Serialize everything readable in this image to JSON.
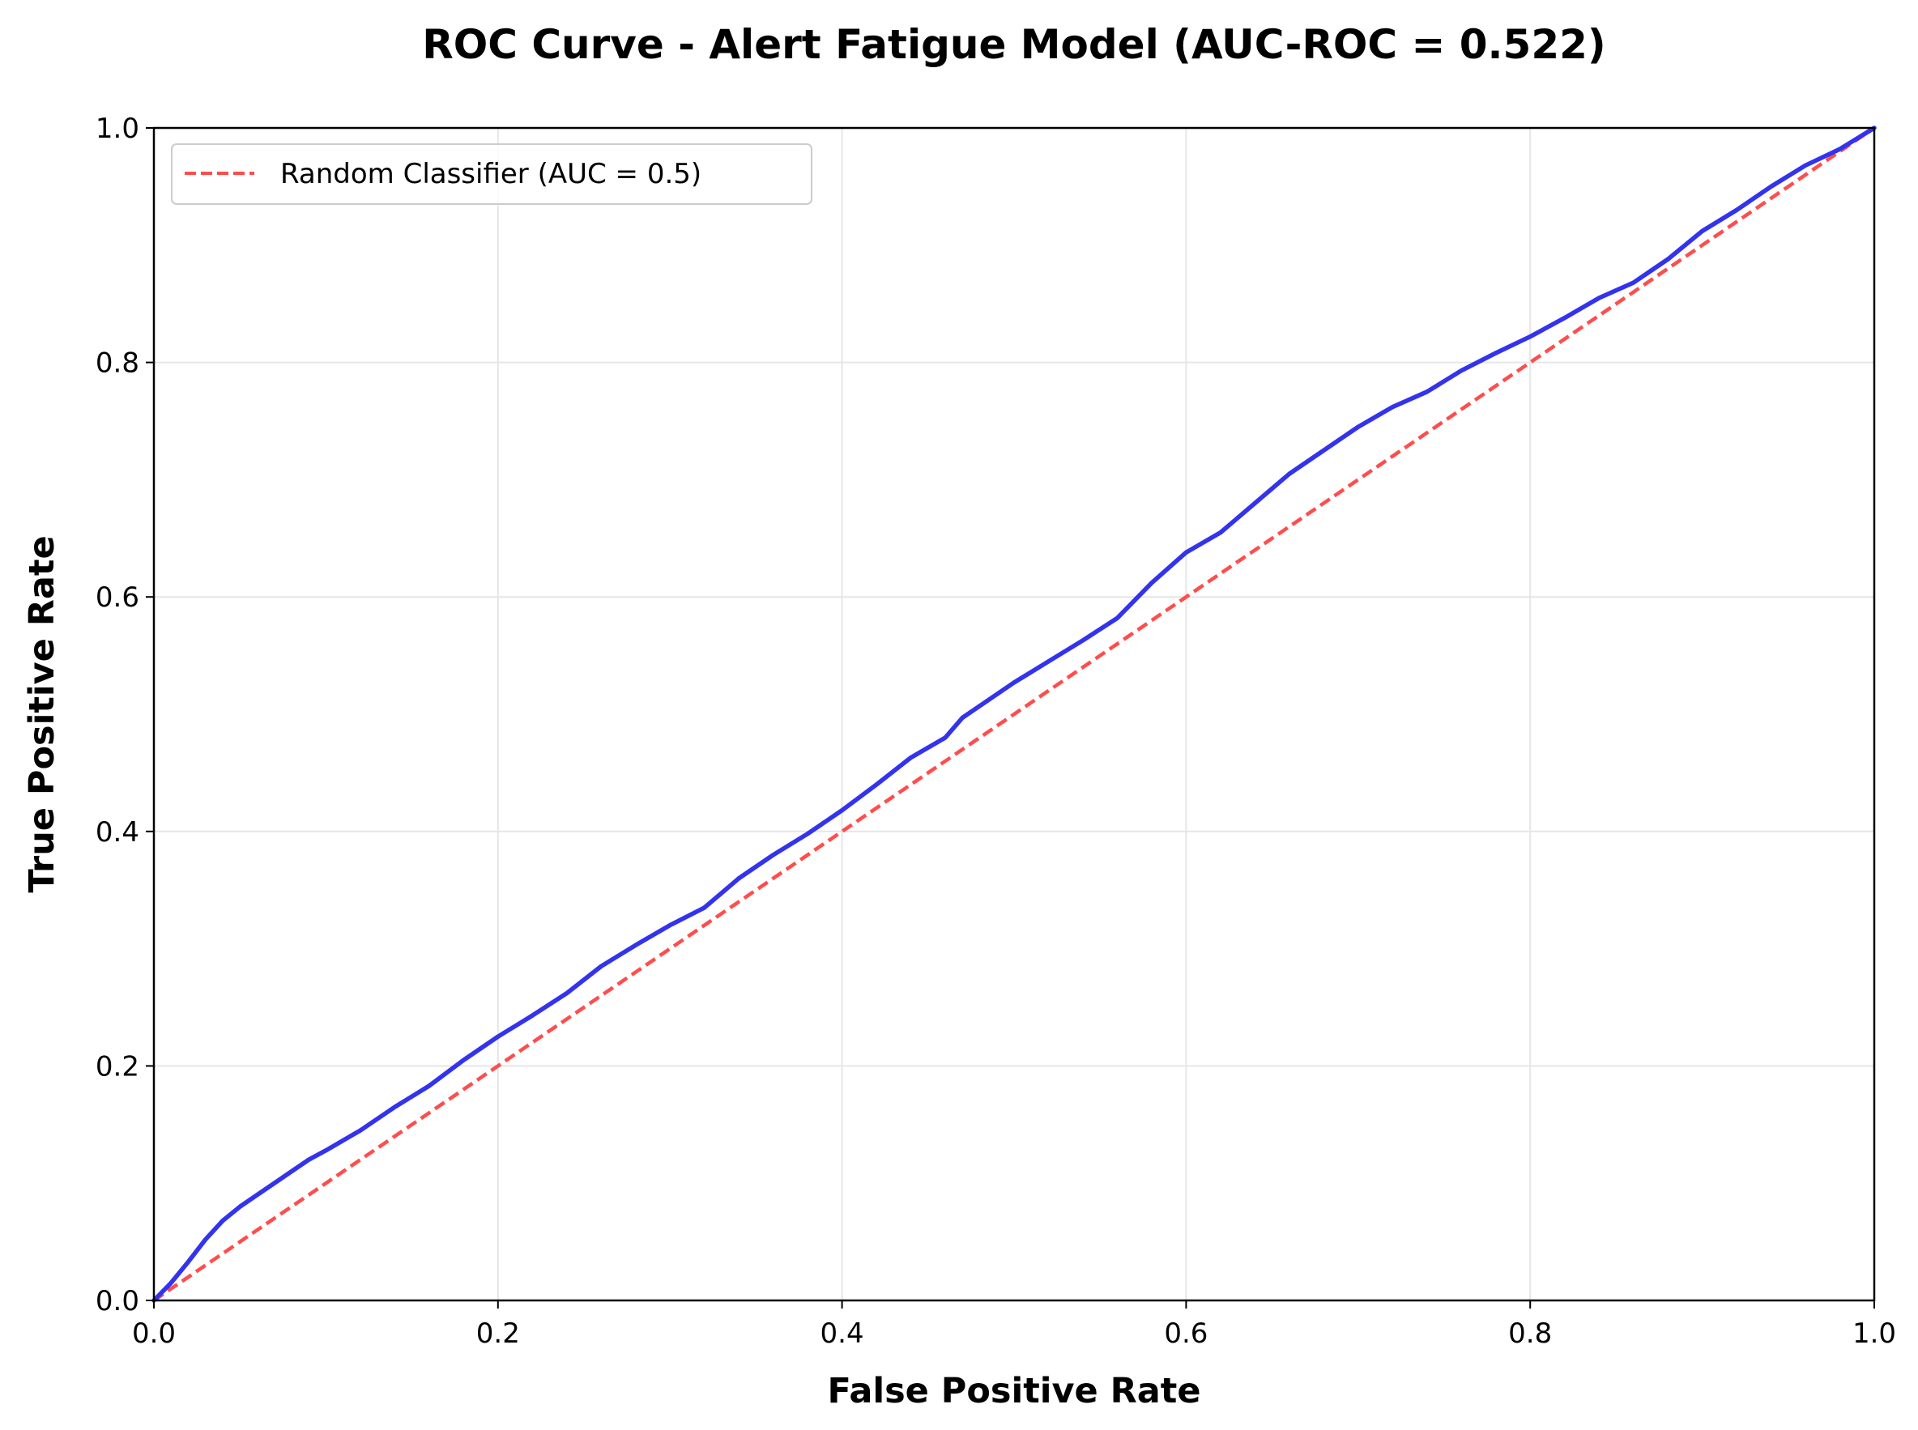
{
  "chart_data": {
    "type": "line",
    "title": "ROC Curve - Alert Fatigue Model (AUC-ROC = 0.522)",
    "xlabel": "False Positive Rate",
    "ylabel": "True Positive Rate",
    "xlim": [
      0.0,
      1.0
    ],
    "ylim": [
      0.0,
      1.0
    ],
    "xticks": [
      "0.0",
      "0.2",
      "0.4",
      "0.6",
      "0.8",
      "1.0"
    ],
    "yticks": [
      "0.0",
      "0.2",
      "0.4",
      "0.6",
      "0.8",
      "1.0"
    ],
    "grid": true,
    "legend_position": "top-left",
    "series": [
      {
        "color": "#3333ee",
        "style": "solid",
        "x": [
          0.0,
          0.01,
          0.02,
          0.03,
          0.04,
          0.05,
          0.06,
          0.07,
          0.08,
          0.09,
          0.1,
          0.12,
          0.14,
          0.16,
          0.18,
          0.2,
          0.22,
          0.24,
          0.26,
          0.28,
          0.3,
          0.32,
          0.34,
          0.36,
          0.38,
          0.4,
          0.42,
          0.44,
          0.46,
          0.47,
          0.48,
          0.5,
          0.52,
          0.54,
          0.56,
          0.58,
          0.6,
          0.62,
          0.64,
          0.66,
          0.68,
          0.7,
          0.72,
          0.74,
          0.76,
          0.78,
          0.8,
          0.82,
          0.84,
          0.86,
          0.88,
          0.9,
          0.92,
          0.94,
          0.96,
          0.98,
          1.0
        ],
        "y": [
          0.0,
          0.015,
          0.033,
          0.052,
          0.068,
          0.08,
          0.09,
          0.1,
          0.11,
          0.12,
          0.128,
          0.145,
          0.165,
          0.183,
          0.205,
          0.225,
          0.243,
          0.262,
          0.285,
          0.303,
          0.32,
          0.335,
          0.36,
          0.38,
          0.398,
          0.418,
          0.44,
          0.463,
          0.48,
          0.497,
          0.507,
          0.527,
          0.545,
          0.563,
          0.582,
          0.612,
          0.638,
          0.655,
          0.68,
          0.705,
          0.725,
          0.745,
          0.762,
          0.775,
          0.793,
          0.808,
          0.822,
          0.838,
          0.855,
          0.868,
          0.888,
          0.912,
          0.93,
          0.95,
          0.968,
          0.982,
          1.0
        ]
      },
      {
        "name": "Random Classifier (AUC = 0.5)",
        "color": "#ff4d4d",
        "style": "dashed",
        "x": [
          0.0,
          1.0
        ],
        "y": [
          0.0,
          1.0
        ]
      }
    ]
  }
}
